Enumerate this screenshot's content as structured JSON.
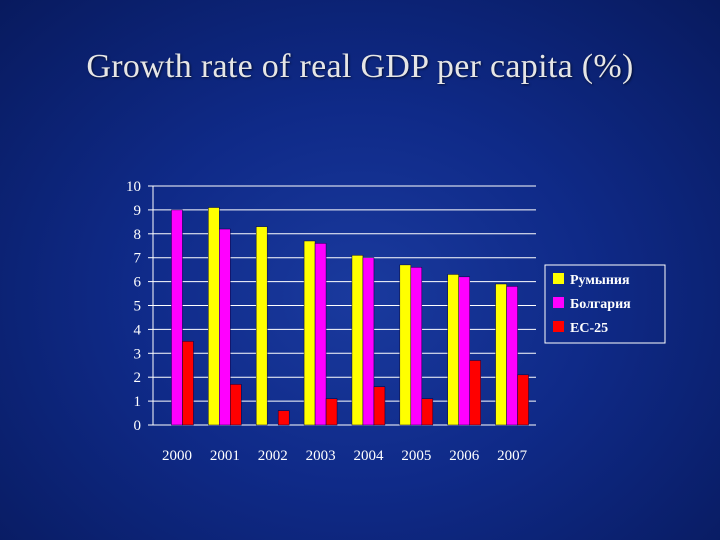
{
  "title": "Growth rate of real GDP per capita (%)",
  "chart_data": {
    "type": "bar",
    "title": "Growth rate of real GDP per capita (%)",
    "categories": [
      "2000",
      "2001",
      "2002",
      "2003",
      "2004",
      "2005",
      "2006",
      "2007"
    ],
    "series": [
      {
        "name": "Румыния",
        "color": "#ffff00",
        "values": [
          0,
          9.1,
          8.3,
          7.7,
          7.1,
          6.7,
          6.3,
          5.9
        ]
      },
      {
        "name": "Болгария",
        "color": "#ff00ff",
        "values": [
          9.0,
          8.2,
          0,
          7.6,
          7.0,
          6.6,
          6.2,
          5.8
        ]
      },
      {
        "name": "ЕС-25",
        "color": "#ff0000",
        "values": [
          3.5,
          1.7,
          0.6,
          1.1,
          1.6,
          1.1,
          2.7,
          2.1
        ]
      }
    ],
    "yticks": [
      0,
      1,
      2,
      3,
      4,
      5,
      6,
      7,
      8,
      9,
      10
    ],
    "ylim": [
      0,
      10
    ],
    "grid": true,
    "legend_position": "right"
  }
}
